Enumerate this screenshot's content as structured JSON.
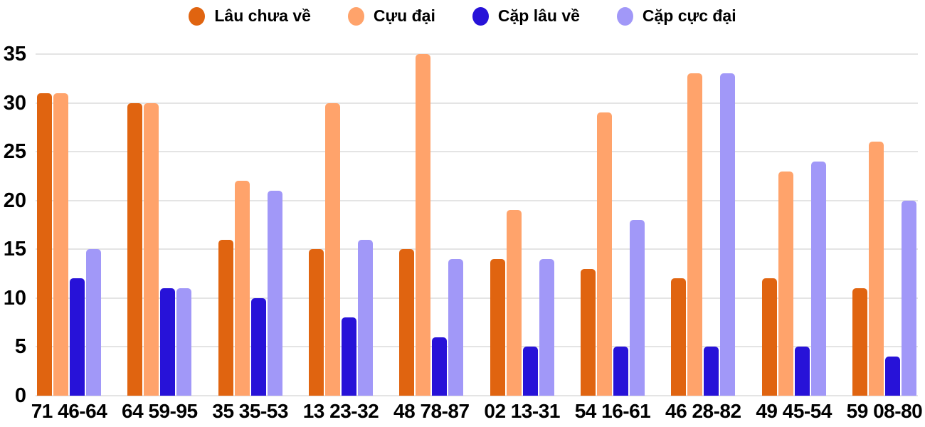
{
  "chart_data": {
    "type": "bar",
    "title": "",
    "xlabel": "",
    "ylabel": "",
    "grid": true,
    "legend_position": "top",
    "ylim": [
      0,
      35
    ],
    "y_ticks": [
      0,
      5,
      10,
      15,
      20,
      25,
      30,
      35
    ],
    "categories": [
      "71 46-64",
      "64 59-95",
      "35 35-53",
      "13 23-32",
      "48 78-87",
      "02 13-31",
      "54 16-61",
      "46 28-82",
      "49 45-54",
      "59 08-80"
    ],
    "series": [
      {
        "name": "Lâu chưa về",
        "color": "#E06410",
        "values": [
          31,
          30,
          16,
          15,
          15,
          14,
          13,
          12,
          12,
          11
        ]
      },
      {
        "name": "Cựu đại",
        "color": "#FFA36B",
        "values": [
          31,
          30,
          22,
          30,
          35,
          19,
          29,
          33,
          23,
          26
        ]
      },
      {
        "name": "Cặp lâu về",
        "color": "#2712D8",
        "values": [
          12,
          11,
          10,
          8,
          6,
          5,
          5,
          5,
          5,
          4
        ]
      },
      {
        "name": "Cặp cực đại",
        "color": "#A198F8",
        "values": [
          15,
          11,
          21,
          16,
          14,
          14,
          18,
          33,
          24,
          20
        ]
      }
    ]
  },
  "colors": {
    "background": "#FFFFFF",
    "grid": "#E4E4E4",
    "text": "#000000"
  }
}
